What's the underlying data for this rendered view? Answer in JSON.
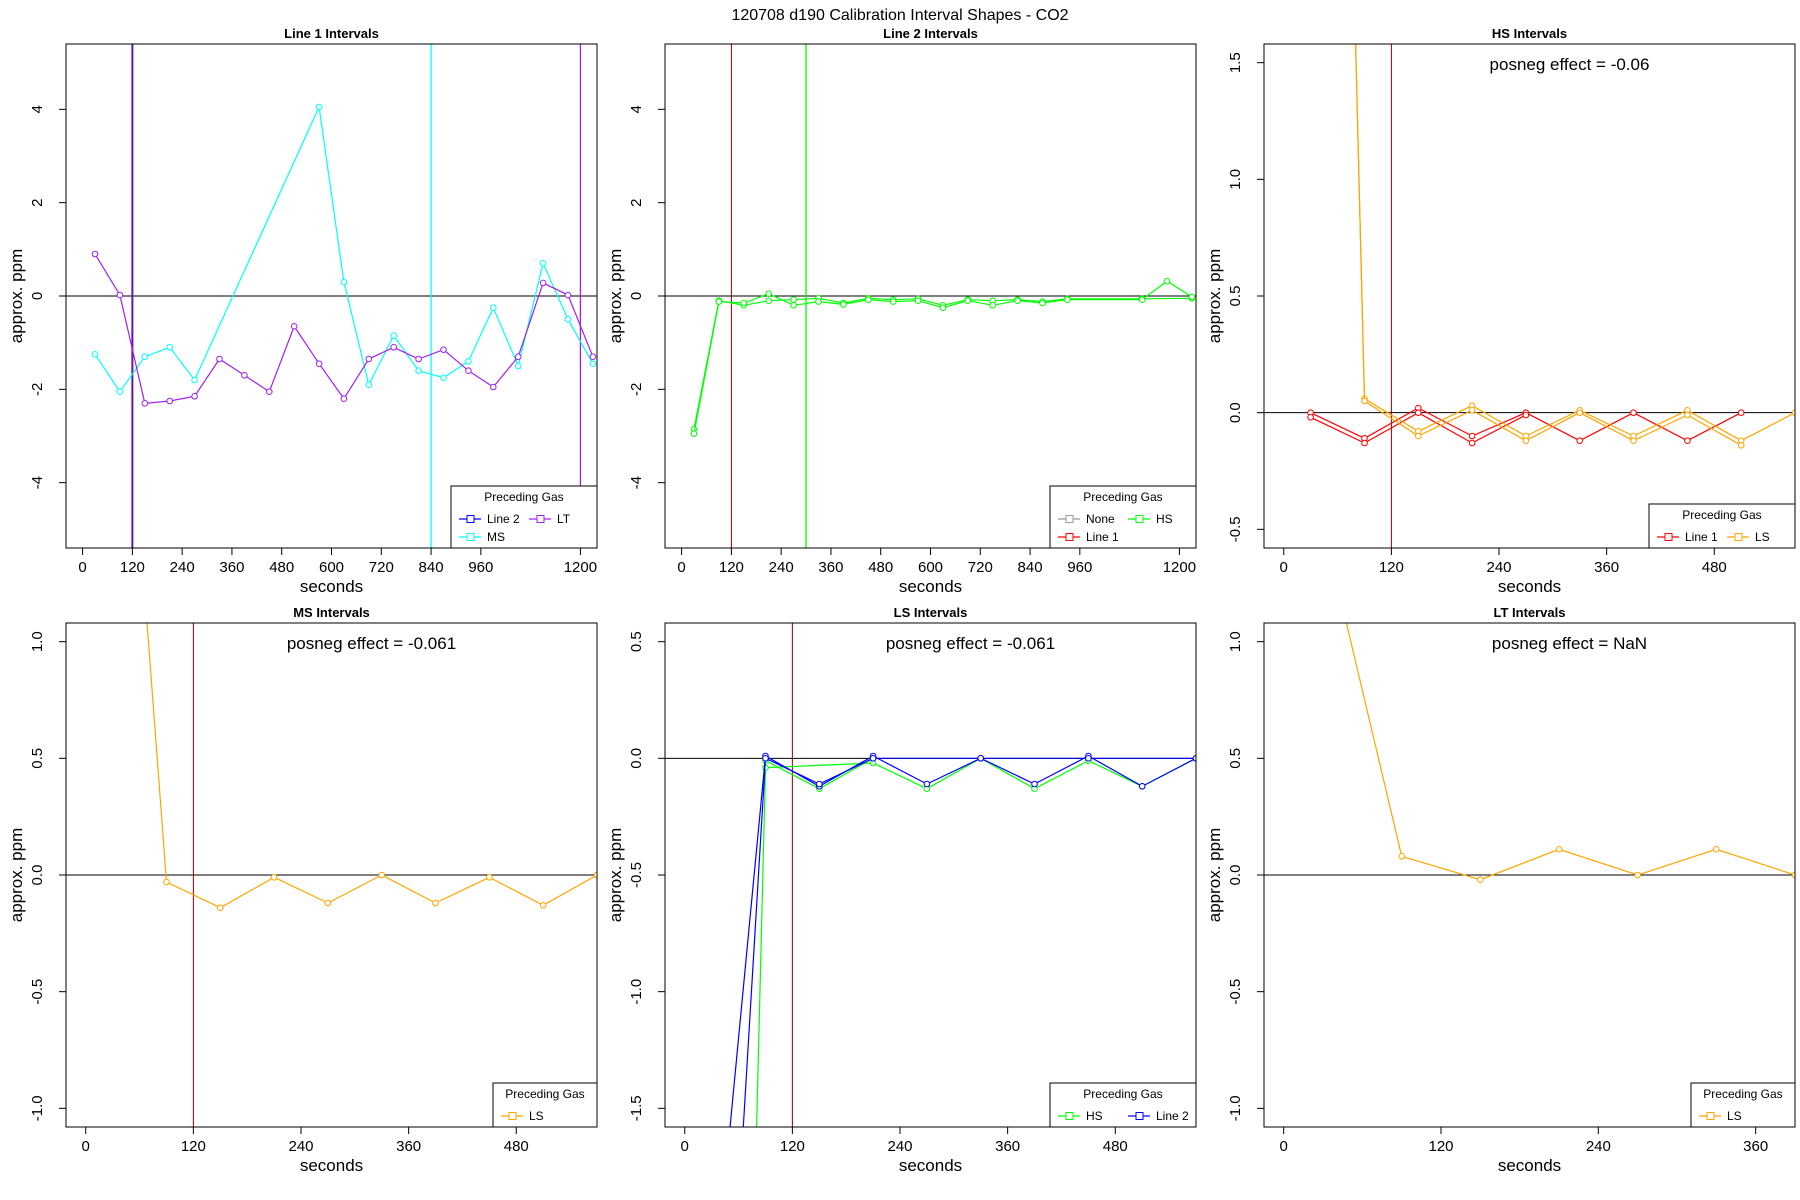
{
  "figure_title": "120708  d190   Calibration Interval Shapes - CO2",
  "legend_title": "Preceding Gas",
  "colors": {
    "line2": "#0000ff",
    "ms": "#00ffff",
    "lt": "#a020f0",
    "none": "#999999",
    "line1": "#ff0000",
    "hs": "#00ff00",
    "ls": "#ffa500",
    "vline_dark": "#8b0000",
    "zero": "#000000"
  },
  "chart_data": [
    {
      "type": "line",
      "title": "Line 1 Intervals",
      "xlabel": "seconds",
      "ylabel": "approx. ppm",
      "xlim": [
        -40,
        1240
      ],
      "ylim": [
        -5.4,
        5.4
      ],
      "xticks": [
        0,
        120,
        240,
        360,
        480,
        600,
        720,
        840,
        960,
        1200
      ],
      "yticks": [
        -4,
        -2,
        0,
        2,
        4
      ],
      "annotation": "",
      "vlines": [
        {
          "x": 120,
          "color": "#5b1aa8",
          "width": 2
        },
        {
          "x": 840,
          "color": "#00ffff",
          "width": 1.3
        },
        {
          "x": 1200,
          "color": "#a020f0",
          "width": 1.3
        }
      ],
      "legend": {
        "cols": 2,
        "items": [
          {
            "name": "Line 2",
            "color": "#0000ff"
          },
          {
            "name": "LT",
            "color": "#a020f0"
          },
          {
            "name": "MS",
            "color": "#00ffff"
          }
        ]
      },
      "series": [
        {
          "name": "MS",
          "color": "#00ffff",
          "points": [
            [
              30,
              -1.25
            ],
            [
              90,
              -2.05
            ],
            [
              150,
              -1.3
            ],
            [
              210,
              -1.1
            ],
            [
              270,
              -1.8
            ],
            [
              570,
              4.05
            ],
            [
              630,
              0.3
            ],
            [
              690,
              -1.9
            ],
            [
              750,
              -0.85
            ],
            [
              810,
              -1.6
            ],
            [
              870,
              -1.75
            ],
            [
              930,
              -1.4
            ],
            [
              990,
              -0.25
            ],
            [
              1050,
              -1.5
            ],
            [
              1110,
              0.7
            ],
            [
              1170,
              -0.5
            ],
            [
              1230,
              -1.45
            ]
          ]
        },
        {
          "name": "LT",
          "color": "#a020f0",
          "points": [
            [
              30,
              0.9
            ],
            [
              90,
              0.02
            ],
            [
              150,
              -2.3
            ],
            [
              210,
              -2.25
            ],
            [
              270,
              -2.15
            ],
            [
              330,
              -1.35
            ],
            [
              390,
              -1.7
            ],
            [
              450,
              -2.05
            ],
            [
              510,
              -0.65
            ],
            [
              570,
              -1.45
            ],
            [
              630,
              -2.2
            ],
            [
              690,
              -1.35
            ],
            [
              750,
              -1.1
            ],
            [
              810,
              -1.35
            ],
            [
              870,
              -1.15
            ],
            [
              930,
              -1.6
            ],
            [
              990,
              -1.95
            ],
            [
              1050,
              -1.3
            ],
            [
              1110,
              0.28
            ],
            [
              1170,
              0.02
            ],
            [
              1230,
              -1.3
            ]
          ]
        }
      ]
    },
    {
      "type": "line",
      "title": "Line 2 Intervals",
      "xlabel": "seconds",
      "ylabel": "approx. ppm",
      "xlim": [
        -40,
        1240
      ],
      "ylim": [
        -5.4,
        5.4
      ],
      "xticks": [
        0,
        120,
        240,
        360,
        480,
        600,
        720,
        840,
        960,
        1200
      ],
      "yticks": [
        -4,
        -2,
        0,
        2,
        4
      ],
      "annotation": "",
      "vlines": [
        {
          "x": 120,
          "color": "#8b0000",
          "width": 1
        },
        {
          "x": 300,
          "color": "#00ff00",
          "width": 1.3
        }
      ],
      "legend": {
        "cols": 2,
        "items": [
          {
            "name": "None",
            "color": "#999999"
          },
          {
            "name": "HS",
            "color": "#00ff00"
          },
          {
            "name": "Line 1",
            "color": "#ff0000"
          }
        ]
      },
      "series": [
        {
          "name": "HS a",
          "color": "#00ff00",
          "points": [
            [
              30,
              -2.85
            ],
            [
              90,
              -0.1
            ],
            [
              150,
              -0.2
            ],
            [
              210,
              -0.1
            ],
            [
              270,
              -0.08
            ],
            [
              330,
              -0.05
            ],
            [
              390,
              -0.15
            ],
            [
              450,
              -0.05
            ],
            [
              510,
              -0.08
            ],
            [
              570,
              -0.06
            ],
            [
              630,
              -0.2
            ],
            [
              690,
              -0.08
            ],
            [
              750,
              -0.1
            ],
            [
              810,
              -0.08
            ],
            [
              870,
              -0.12
            ],
            [
              930,
              -0.06
            ],
            [
              1110,
              -0.06
            ],
            [
              1230,
              -0.05
            ]
          ]
        },
        {
          "name": "HS b",
          "color": "#00ff00",
          "points": [
            [
              30,
              -2.95
            ],
            [
              90,
              -0.12
            ],
            [
              150,
              -0.15
            ],
            [
              210,
              0.05
            ],
            [
              270,
              -0.2
            ],
            [
              330,
              -0.12
            ],
            [
              390,
              -0.18
            ],
            [
              450,
              -0.08
            ],
            [
              510,
              -0.12
            ],
            [
              570,
              -0.1
            ],
            [
              630,
              -0.25
            ],
            [
              690,
              -0.1
            ],
            [
              750,
              -0.2
            ],
            [
              810,
              -0.1
            ],
            [
              870,
              -0.15
            ],
            [
              930,
              -0.08
            ],
            [
              1110,
              -0.08
            ],
            [
              1170,
              0.32
            ],
            [
              1230,
              -0.02
            ]
          ]
        }
      ]
    },
    {
      "type": "line",
      "title": "HS Intervals",
      "xlabel": "seconds",
      "ylabel": "approx. ppm",
      "xlim": [
        -22,
        570
      ],
      "ylim": [
        -0.58,
        1.58
      ],
      "xticks": [
        0,
        120,
        240,
        360,
        480
      ],
      "yticks": [
        -0.5,
        0.0,
        0.5,
        1.0,
        1.5
      ],
      "annotation": "posneg effect = -0.06",
      "vlines": [
        {
          "x": 120,
          "color": "#8b0000",
          "width": 1
        }
      ],
      "legend": {
        "cols": 2,
        "items": [
          {
            "name": "Line 1",
            "color": "#ff0000"
          },
          {
            "name": "LS",
            "color": "#ffa500"
          }
        ]
      },
      "series": [
        {
          "name": "Line 1 a",
          "color": "#ff0000",
          "points": [
            [
              30,
              0.0
            ],
            [
              90,
              -0.11
            ],
            [
              150,
              0.02
            ],
            [
              210,
              -0.1
            ],
            [
              270,
              0.0
            ],
            [
              330,
              -0.12
            ],
            [
              390,
              0.0
            ],
            [
              450,
              -0.12
            ],
            [
              510,
              0.0
            ]
          ]
        },
        {
          "name": "Line 1 b",
          "color": "#ff0000",
          "points": [
            [
              30,
              -0.02
            ],
            [
              90,
              -0.13
            ],
            [
              150,
              0.0
            ],
            [
              210,
              -0.13
            ],
            [
              270,
              -0.01
            ]
          ]
        },
        {
          "name": "LS a",
          "color": "#ffa500",
          "points": [
            [
              80,
              1.6
            ],
            [
              90,
              0.06
            ],
            [
              150,
              -0.08
            ],
            [
              210,
              0.03
            ],
            [
              270,
              -0.1
            ],
            [
              330,
              0.01
            ],
            [
              390,
              -0.1
            ],
            [
              450,
              0.01
            ],
            [
              510,
              -0.12
            ],
            [
              570,
              0.0
            ]
          ]
        },
        {
          "name": "LS b",
          "color": "#ffa500",
          "points": [
            [
              80,
              1.6
            ],
            [
              90,
              0.05
            ],
            [
              150,
              -0.1
            ],
            [
              210,
              0.01
            ],
            [
              270,
              -0.12
            ],
            [
              330,
              0.0
            ],
            [
              390,
              -0.12
            ],
            [
              450,
              -0.01
            ],
            [
              510,
              -0.14
            ]
          ]
        }
      ]
    },
    {
      "type": "line",
      "title": "MS Intervals",
      "xlabel": "seconds",
      "ylabel": "approx. ppm",
      "xlim": [
        -22,
        570
      ],
      "ylim": [
        -1.08,
        1.08
      ],
      "xticks": [
        0,
        120,
        240,
        360,
        480
      ],
      "yticks": [
        -1.0,
        -0.5,
        0.0,
        0.5,
        1.0
      ],
      "annotation": "posneg effect = -0.061",
      "vlines": [
        {
          "x": 120,
          "color": "#8b0000",
          "width": 1
        }
      ],
      "legend": {
        "cols": 1,
        "items": [
          {
            "name": "LS",
            "color": "#ffa500"
          }
        ]
      },
      "series": [
        {
          "name": "LS",
          "color": "#ffa500",
          "points": [
            [
              68,
              1.1
            ],
            [
              90,
              -0.03
            ],
            [
              150,
              -0.14
            ],
            [
              210,
              -0.01
            ],
            [
              270,
              -0.12
            ],
            [
              330,
              0.0
            ],
            [
              390,
              -0.12
            ],
            [
              450,
              -0.01
            ],
            [
              510,
              -0.13
            ],
            [
              570,
              0.0
            ]
          ]
        }
      ]
    },
    {
      "type": "line",
      "title": "LS Intervals",
      "xlabel": "seconds",
      "ylabel": "approx. ppm",
      "xlim": [
        -22,
        570
      ],
      "ylim": [
        -1.58,
        0.58
      ],
      "xticks": [
        0,
        120,
        240,
        360,
        480
      ],
      "yticks": [
        -1.5,
        -1.0,
        -0.5,
        0.0,
        0.5
      ],
      "annotation": "posneg effect = -0.061",
      "vlines": [
        {
          "x": 120,
          "color": "#8b0000",
          "width": 1
        }
      ],
      "legend": {
        "cols": 2,
        "items": [
          {
            "name": "HS",
            "color": "#00ff00"
          },
          {
            "name": "Line 2",
            "color": "#0000ff"
          }
        ]
      },
      "series": [
        {
          "name": "HS",
          "color": "#00ff00",
          "points": [
            [
              80,
              -1.6
            ],
            [
              90,
              -0.04
            ],
            [
              210,
              -0.02
            ],
            [
              270,
              -0.13
            ],
            [
              330,
              0.0
            ],
            [
              390,
              -0.13
            ],
            [
              450,
              -0.01
            ],
            [
              510,
              -0.12
            ],
            [
              570,
              0.0
            ]
          ]
        },
        {
          "name": "HS b",
          "color": "#00ff00",
          "points": [
            [
              90,
              -0.01
            ],
            [
              150,
              -0.13
            ],
            [
              210,
              0.0
            ]
          ]
        },
        {
          "name": "Line 2",
          "color": "#0000ff",
          "points": [
            [
              50,
              -1.6
            ],
            [
              90,
              0.01
            ],
            [
              150,
              -0.12
            ],
            [
              210,
              0.01
            ],
            [
              270,
              -0.11
            ],
            [
              330,
              0.0
            ],
            [
              390,
              -0.11
            ],
            [
              450,
              0.01
            ],
            [
              510,
              -0.12
            ],
            [
              570,
              0.0
            ]
          ]
        },
        {
          "name": "Line 2 b",
          "color": "#0000ff",
          "points": [
            [
              65,
              -1.6
            ],
            [
              90,
              0.0
            ],
            [
              150,
              -0.11
            ],
            [
              210,
              0.0
            ],
            [
              330,
              0.0
            ],
            [
              450,
              0.0
            ],
            [
              570,
              0.0
            ]
          ]
        }
      ]
    },
    {
      "type": "line",
      "title": "LT Intervals",
      "xlabel": "seconds",
      "ylabel": "approx. ppm",
      "xlim": [
        -15,
        390
      ],
      "ylim": [
        -1.08,
        1.08
      ],
      "xticks": [
        0,
        120,
        240,
        360
      ],
      "yticks": [
        -1.0,
        -0.5,
        0.0,
        0.5,
        1.0
      ],
      "annotation": "posneg effect = NaN",
      "vlines": [],
      "legend": {
        "cols": 1,
        "items": [
          {
            "name": "LS",
            "color": "#ffa500"
          }
        ]
      },
      "series": [
        {
          "name": "LS",
          "color": "#ffa500",
          "points": [
            [
              47,
              1.1
            ],
            [
              90,
              0.08
            ],
            [
              150,
              -0.02
            ],
            [
              210,
              0.11
            ],
            [
              270,
              0.0
            ],
            [
              330,
              0.11
            ],
            [
              390,
              0.0
            ]
          ]
        }
      ]
    }
  ]
}
